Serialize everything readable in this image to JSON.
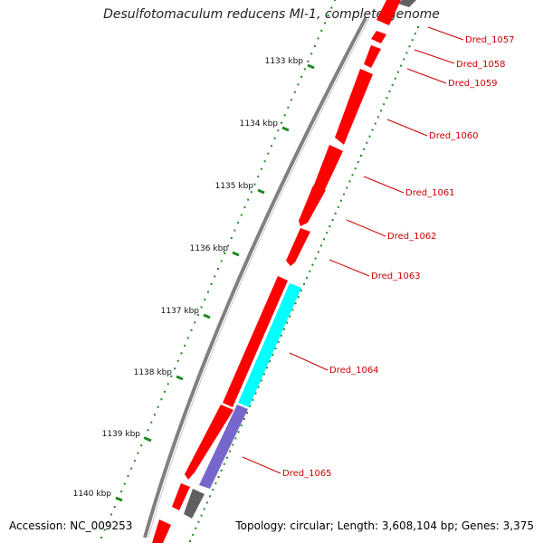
{
  "title": "Desulfotomaculum reducens MI-1, complete genome",
  "footer": {
    "accession": "Accession: NC_009253",
    "topology": "Topology: circular; Length: 3,608,104 bp; Genes: 3,375"
  },
  "colors": {
    "backbone": "#808080",
    "gene_forward": "#ff0000",
    "gene_cyan": "#00ffff",
    "gene_purple": "#7766cc",
    "gene_gray": "#606060",
    "label_red": "#cc0000",
    "tick_green": "#228822"
  },
  "ticks": [
    "1133 kbp",
    "1134 kbp",
    "1135 kbp",
    "1136 kbp",
    "1137 kbp",
    "1138 kbp",
    "1139 kbp",
    "1140 kbp"
  ],
  "genes": [
    "Dred_1057",
    "Dred_1058",
    "Dred_1059",
    "Dred_1060",
    "Dred_1061",
    "Dred_1062",
    "Dred_1063",
    "Dred_1064",
    "Dred_1065"
  ]
}
